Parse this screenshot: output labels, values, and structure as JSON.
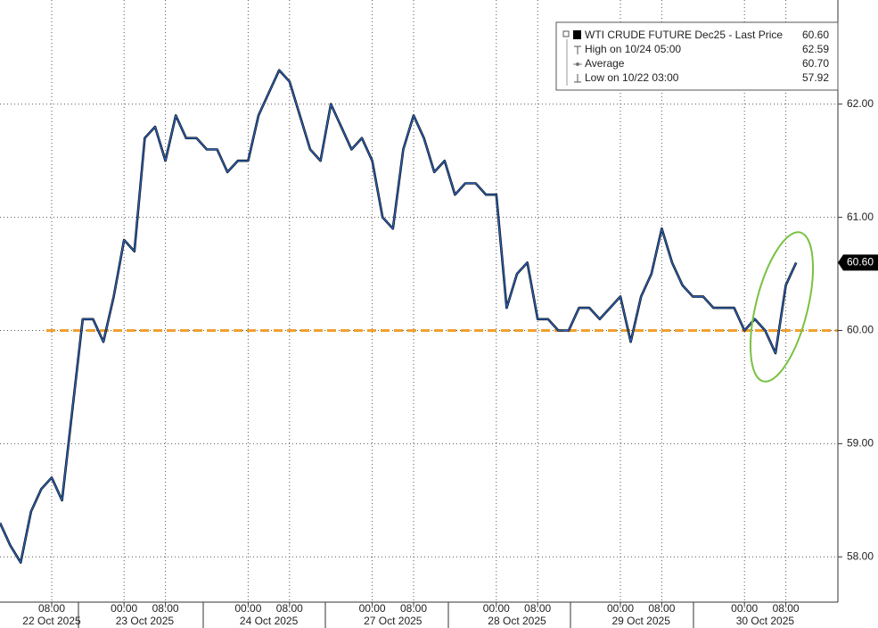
{
  "chart_data": {
    "type": "line",
    "series": [
      {
        "name": "WTI CRUDE FUTURE Dec25 - Last Price",
        "color": "#2a62b8",
        "values": [
          58.3,
          58.1,
          57.95,
          58.4,
          58.6,
          58.7,
          58.5,
          59.3,
          60.1,
          60.1,
          59.9,
          60.3,
          60.8,
          60.7,
          61.7,
          61.8,
          61.5,
          61.9,
          61.7,
          61.7,
          61.6,
          61.6,
          61.4,
          61.5,
          61.5,
          61.9,
          62.1,
          62.3,
          62.2,
          61.9,
          61.6,
          61.5,
          62.0,
          61.8,
          61.6,
          61.7,
          61.5,
          61.0,
          60.9,
          61.6,
          61.9,
          61.7,
          61.4,
          61.5,
          61.2,
          61.3,
          61.3,
          61.2,
          61.2,
          60.2,
          60.5,
          60.6,
          60.1,
          60.1,
          60.0,
          60.0,
          60.2,
          60.2,
          60.1,
          60.2,
          60.3,
          59.9,
          60.3,
          60.5,
          60.9,
          60.6,
          60.4,
          60.3,
          60.3,
          60.2,
          60.2,
          60.2,
          60.0,
          60.1,
          60.0,
          59.8,
          60.4,
          60.6,
          null,
          null,
          null
        ]
      }
    ],
    "categories": [
      null,
      null,
      null,
      null,
      null,
      "08:00",
      null,
      null,
      null,
      null,
      null,
      null,
      "00:00",
      null,
      null,
      null,
      "08:00",
      null,
      null,
      null,
      null,
      null,
      null,
      null,
      "00:00",
      null,
      null,
      null,
      "08:00",
      null,
      null,
      null,
      null,
      null,
      null,
      null,
      "00:00",
      null,
      null,
      null,
      "08:00",
      null,
      null,
      null,
      null,
      null,
      null,
      null,
      "00:00",
      null,
      null,
      null,
      "08:00",
      null,
      null,
      null,
      null,
      null,
      null,
      null,
      "00:00",
      null,
      null,
      null,
      "08:00",
      null,
      null,
      null,
      null,
      null,
      null,
      null,
      "00:00",
      null,
      null,
      null,
      "08:00",
      null,
      null,
      null,
      null
    ],
    "dates": [
      null,
      null,
      null,
      null,
      null,
      "22 Oct 2025",
      null,
      null,
      null,
      null,
      null,
      null,
      null,
      null,
      "23 Oct 2025",
      null,
      null,
      null,
      null,
      null,
      null,
      null,
      null,
      null,
      null,
      null,
      "24 Oct 2025",
      null,
      null,
      null,
      null,
      null,
      null,
      null,
      null,
      null,
      null,
      null,
      "27 Oct 2025",
      null,
      null,
      null,
      null,
      null,
      null,
      null,
      null,
      null,
      null,
      null,
      "28 Oct 2025",
      null,
      null,
      null,
      null,
      null,
      null,
      null,
      null,
      null,
      null,
      null,
      "29 Oct 2025",
      null,
      null,
      null,
      null,
      null,
      null,
      null,
      null,
      null,
      null,
      null,
      "30 Oct 2025",
      null,
      null,
      null,
      null,
      null,
      null
    ],
    "ylim": [
      57.6,
      62.92
    ],
    "yticks": [
      {
        "value": 58,
        "label": "58.00"
      },
      {
        "value": 59,
        "label": "59.00"
      },
      {
        "value": 60,
        "label": "60.00"
      },
      {
        "value": 61,
        "label": "61.00"
      },
      {
        "value": 62,
        "label": "62.00"
      }
    ],
    "grid": true,
    "reference_line": {
      "value": 60,
      "color": "#f0a030"
    },
    "last_price_tag": {
      "value": 60.6,
      "label": "60.60"
    },
    "legend": {
      "title": "WTI CRUDE FUTURE Dec25 - Last Price",
      "value": "60.60",
      "stats": [
        {
          "label": "High on 10/24 05:00",
          "value": "62.59"
        },
        {
          "label": "Average",
          "value": "60.70"
        },
        {
          "label": "Low on 10/22 03:00",
          "value": "57.92"
        }
      ]
    }
  }
}
